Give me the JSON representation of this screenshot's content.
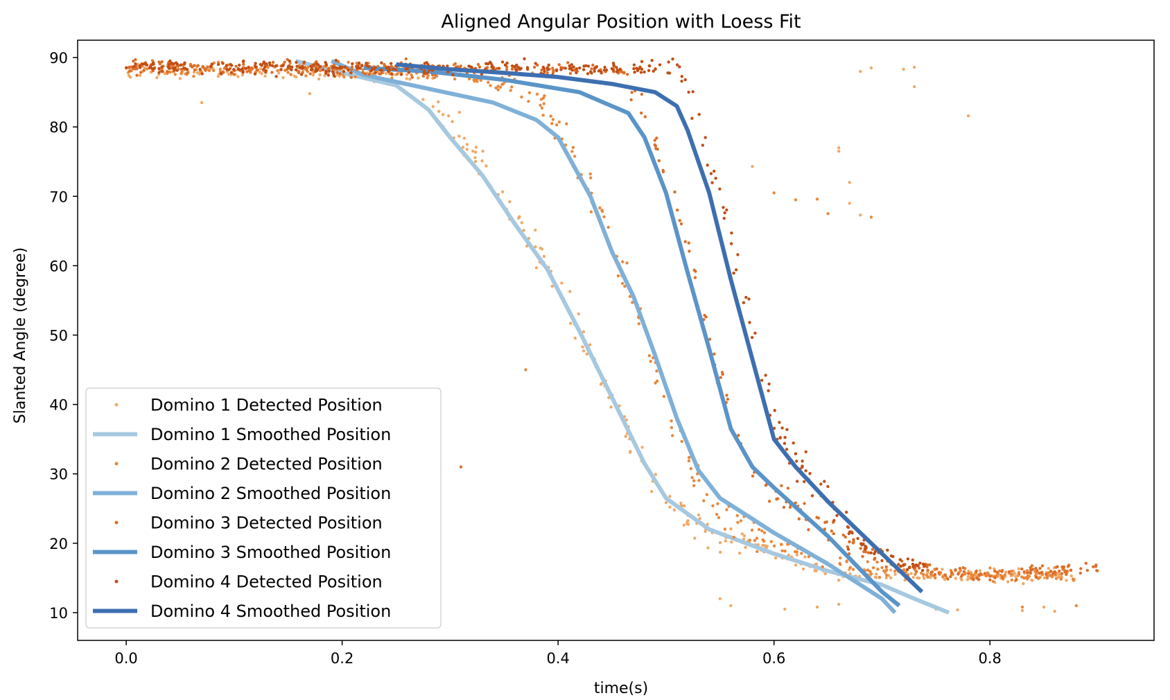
{
  "chart_data": {
    "type": "scatter",
    "title": "Aligned Angular Position with Loess Fit",
    "xlabel": "time(s)",
    "ylabel": "Slanted Angle (degree)",
    "xlim": [
      -0.045,
      0.952
    ],
    "ylim": [
      6.0,
      92.5
    ],
    "xticks": [
      0.0,
      0.2,
      0.4,
      0.6,
      0.8
    ],
    "xtick_labels": [
      "0.0",
      "0.2",
      "0.4",
      "0.6",
      "0.8"
    ],
    "yticks": [
      10,
      20,
      30,
      40,
      50,
      60,
      70,
      80,
      90
    ],
    "ytick_labels": [
      "10",
      "20",
      "30",
      "40",
      "50",
      "60",
      "70",
      "80",
      "90"
    ],
    "grid": false,
    "legend_position": "lower-left",
    "legend": [
      "Domino 1 Detected Position",
      "Domino 1 Smoothed Position",
      "Domino 2 Detected Position",
      "Domino 2 Smoothed Position",
      "Domino 3 Detected Position",
      "Domino 3 Smoothed Position",
      "Domino 4 Detected Position",
      "Domino 4 Smoothed Position"
    ],
    "series": [
      {
        "name": "Domino 1 Detected Position",
        "kind": "scatter",
        "color": "#f0a968",
        "trend": [
          [
            0.0,
            88.2
          ],
          [
            0.25,
            87.6
          ],
          [
            0.28,
            85.0
          ],
          [
            0.3,
            80.5
          ],
          [
            0.33,
            74.5
          ],
          [
            0.36,
            66.5
          ],
          [
            0.39,
            60.0
          ],
          [
            0.42,
            50.5
          ],
          [
            0.45,
            40.5
          ],
          [
            0.48,
            31.0
          ],
          [
            0.5,
            26.0
          ],
          [
            0.54,
            22.0
          ],
          [
            0.6,
            18.5
          ],
          [
            0.65,
            16.0
          ],
          [
            0.7,
            15.5
          ],
          [
            0.8,
            15.5
          ],
          [
            0.88,
            15.3
          ]
        ],
        "outliers": [
          [
            0.68,
            88.0
          ],
          [
            0.69,
            88.5
          ],
          [
            0.72,
            88.3
          ],
          [
            0.73,
            88.6
          ],
          [
            0.73,
            85.8
          ],
          [
            0.78,
            81.6
          ],
          [
            0.66,
            77.0
          ],
          [
            0.66,
            76.5
          ],
          [
            0.58,
            74.3
          ],
          [
            0.67,
            72.0
          ],
          [
            0.67,
            69.0
          ],
          [
            0.68,
            67.3
          ],
          [
            0.55,
            12.0
          ],
          [
            0.56,
            11.0
          ],
          [
            0.61,
            10.5
          ],
          [
            0.64,
            10.8
          ],
          [
            0.66,
            11.2
          ],
          [
            0.75,
            10.5
          ],
          [
            0.77,
            10.4
          ],
          [
            0.83,
            10.3
          ],
          [
            0.85,
            10.8
          ],
          [
            0.86,
            10.2
          ],
          [
            0.17,
            84.8
          ],
          [
            0.07,
            83.5
          ]
        ]
      },
      {
        "name": "Domino 1 Smoothed Position",
        "kind": "line",
        "color": "#a6c8e0",
        "x": [
          0.157,
          0.2,
          0.25,
          0.28,
          0.3,
          0.33,
          0.36,
          0.39,
          0.42,
          0.45,
          0.48,
          0.5,
          0.54,
          0.6,
          0.65,
          0.7,
          0.73,
          0.762
        ],
        "y": [
          89.5,
          87.8,
          86.0,
          82.5,
          78.5,
          73.0,
          66.0,
          59.5,
          50.5,
          41.0,
          31.5,
          26.5,
          22.0,
          18.5,
          16.0,
          14.0,
          12.0,
          10.0
        ]
      },
      {
        "name": "Domino 2 Detected Position",
        "kind": "scatter",
        "color": "#e8883c",
        "trend": [
          [
            0.0,
            88.4
          ],
          [
            0.3,
            88.0
          ],
          [
            0.38,
            84.5
          ],
          [
            0.4,
            80.0
          ],
          [
            0.43,
            71.0
          ],
          [
            0.45,
            62.5
          ],
          [
            0.47,
            55.0
          ],
          [
            0.49,
            45.0
          ],
          [
            0.51,
            35.5
          ],
          [
            0.53,
            28.5
          ],
          [
            0.55,
            24.0
          ],
          [
            0.6,
            20.0
          ],
          [
            0.65,
            17.5
          ],
          [
            0.7,
            16.0
          ],
          [
            0.8,
            15.5
          ],
          [
            0.88,
            15.3
          ]
        ],
        "outliers": [
          [
            0.37,
            45.0
          ],
          [
            0.69,
            67.0
          ],
          [
            0.6,
            70.5
          ],
          [
            0.62,
            69.5
          ],
          [
            0.64,
            69.6
          ],
          [
            0.65,
            67.5
          ],
          [
            0.7,
            16.5
          ],
          [
            0.88,
            11.0
          ],
          [
            0.83,
            10.8
          ]
        ]
      },
      {
        "name": "Domino 2 Smoothed Position",
        "kind": "line",
        "color": "#7fb0d8",
        "x": [
          0.19,
          0.22,
          0.28,
          0.34,
          0.38,
          0.4,
          0.43,
          0.45,
          0.47,
          0.49,
          0.51,
          0.53,
          0.55,
          0.6,
          0.65,
          0.7,
          0.712
        ],
        "y": [
          89.5,
          87.5,
          85.5,
          83.5,
          81.0,
          78.5,
          70.0,
          62.0,
          55.5,
          47.0,
          38.0,
          30.5,
          26.5,
          21.5,
          17.0,
          12.0,
          10.0
        ]
      },
      {
        "name": "Domino 3 Detected Position",
        "kind": "scatter",
        "color": "#dc6f29",
        "trend": [
          [
            0.0,
            88.6
          ],
          [
            0.46,
            88.2
          ],
          [
            0.48,
            82.0
          ],
          [
            0.5,
            73.0
          ],
          [
            0.52,
            62.0
          ],
          [
            0.54,
            50.0
          ],
          [
            0.56,
            38.5
          ],
          [
            0.58,
            31.0
          ],
          [
            0.6,
            27.5
          ],
          [
            0.65,
            22.0
          ],
          [
            0.7,
            17.5
          ],
          [
            0.75,
            16.0
          ],
          [
            0.8,
            15.5
          ],
          [
            0.9,
            16.5
          ]
        ],
        "outliers": [
          [
            0.31,
            31.0
          ]
        ]
      },
      {
        "name": "Domino 3 Smoothed Position",
        "kind": "line",
        "color": "#5a94c8",
        "x": [
          0.22,
          0.28,
          0.35,
          0.42,
          0.465,
          0.48,
          0.5,
          0.52,
          0.54,
          0.56,
          0.58,
          0.6,
          0.65,
          0.7,
          0.716
        ],
        "y": [
          88.5,
          88.0,
          86.8,
          85.0,
          82.0,
          78.5,
          70.5,
          59.0,
          48.0,
          36.5,
          31.0,
          28.0,
          21.0,
          13.0,
          11.0
        ]
      },
      {
        "name": "Domino 4 Detected Position",
        "kind": "scatter",
        "color": "#c04f16",
        "trend": [
          [
            0.0,
            88.6
          ],
          [
            0.51,
            88.4
          ],
          [
            0.52,
            85.5
          ],
          [
            0.54,
            76.0
          ],
          [
            0.56,
            63.5
          ],
          [
            0.58,
            51.5
          ],
          [
            0.6,
            38.0
          ],
          [
            0.62,
            32.0
          ],
          [
            0.65,
            26.0
          ],
          [
            0.68,
            20.0
          ],
          [
            0.72,
            17.0
          ],
          [
            0.74,
            16.5
          ]
        ],
        "outliers": [
          [
            0.705,
            19.0
          ],
          [
            0.7,
            17.5
          ]
        ]
      },
      {
        "name": "Domino 4 Smoothed Position",
        "kind": "line",
        "color": "#3d6fb0",
        "x": [
          0.25,
          0.3,
          0.35,
          0.4,
          0.45,
          0.49,
          0.51,
          0.52,
          0.54,
          0.56,
          0.58,
          0.6,
          0.62,
          0.65,
          0.7,
          0.737
        ],
        "y": [
          89.0,
          88.3,
          87.8,
          87.2,
          86.2,
          85.0,
          83.0,
          79.5,
          70.5,
          58.0,
          46.5,
          35.0,
          31.0,
          26.0,
          18.5,
          13.0
        ]
      }
    ]
  }
}
